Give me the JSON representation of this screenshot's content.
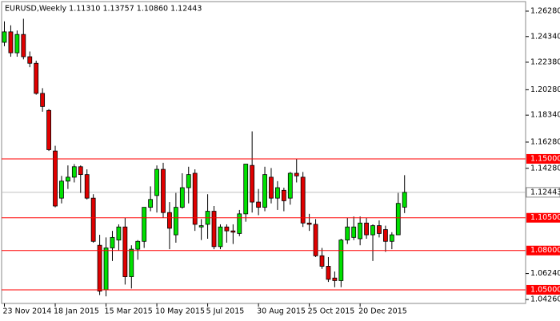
{
  "chart_data": {
    "type": "candlestick",
    "title": "EURUSD,Weekly  1.11310 1.13757 1.10860 1.12443",
    "categories": [
      "23 Nov 2014",
      null,
      null,
      null,
      null,
      null,
      null,
      null,
      "18 Jan 2015",
      null,
      null,
      null,
      null,
      null,
      null,
      null,
      "15 Mar 2015",
      null,
      null,
      null,
      null,
      null,
      null,
      null,
      "10 May 2015",
      null,
      null,
      null,
      null,
      null,
      null,
      null,
      "5 Jul 2015",
      null,
      null,
      null,
      null,
      null,
      null,
      null,
      "30 Aug 2015",
      null,
      null,
      null,
      null,
      null,
      null,
      null,
      "25 Oct 2015",
      null,
      null,
      null,
      null,
      null,
      null,
      null,
      "20 Dec 2015",
      null,
      null,
      null,
      null,
      null,
      null,
      null
    ],
    "open": [
      1.239,
      1.247,
      1.231,
      1.245,
      1.228,
      1.223,
      1.2,
      1.187,
      1.156,
      1.12,
      1.133,
      1.136,
      1.144,
      1.138,
      1.12,
      1.084,
      1.05,
      1.082,
      1.088,
      1.098,
      1.06,
      1.081,
      1.087,
      1.113,
      1.122,
      1.142,
      1.109,
      1.092,
      1.113,
      1.128,
      1.139,
      1.098,
      1.1,
      1.11,
      1.083,
      1.098,
      1.095,
      1.093,
      1.108,
      1.145,
      1.117,
      1.113,
      1.136,
      1.12,
      1.126,
      1.12,
      1.139,
      1.136,
      1.101,
      1.1,
      1.076,
      1.068,
      1.059,
      1.057,
      1.088,
      1.09,
      1.089,
      1.101,
      1.092,
      1.099,
      1.096,
      1.087,
      1.092,
      1.1131
    ],
    "high": [
      1.255,
      1.252,
      1.248,
      1.257,
      1.232,
      1.225,
      1.204,
      1.188,
      1.16,
      1.137,
      1.145,
      1.146,
      1.145,
      1.142,
      1.123,
      1.092,
      1.09,
      1.095,
      1.1,
      1.105,
      1.084,
      1.088,
      1.113,
      1.129,
      1.145,
      1.147,
      1.117,
      1.124,
      1.139,
      1.144,
      1.142,
      1.104,
      1.123,
      1.114,
      1.1,
      1.1,
      1.1,
      1.111,
      1.146,
      1.171,
      1.127,
      1.144,
      1.143,
      1.133,
      1.128,
      1.14,
      1.15,
      1.14,
      1.108,
      1.104,
      1.082,
      1.075,
      1.064,
      1.089,
      1.105,
      1.106,
      1.106,
      1.105,
      1.1,
      1.103,
      1.099,
      1.094,
      1.124,
      1.13757
    ],
    "low": [
      1.236,
      1.228,
      1.228,
      1.226,
      1.22,
      1.199,
      1.186,
      1.156,
      1.113,
      1.116,
      1.127,
      1.132,
      1.124,
      1.119,
      1.086,
      1.046,
      1.045,
      1.072,
      1.08,
      1.054,
      1.051,
      1.073,
      1.082,
      1.11,
      1.109,
      1.105,
      1.081,
      1.086,
      1.112,
      1.116,
      1.095,
      1.088,
      1.089,
      1.081,
      1.081,
      1.086,
      1.085,
      1.091,
      1.102,
      1.109,
      1.107,
      1.11,
      1.116,
      1.111,
      1.11,
      1.115,
      1.132,
      1.098,
      1.095,
      1.075,
      1.066,
      1.056,
      1.052,
      1.052,
      1.085,
      1.088,
      1.084,
      1.089,
      1.072,
      1.09,
      1.079,
      1.081,
      1.092,
      1.1086
    ],
    "close": [
      1.247,
      1.231,
      1.245,
      1.228,
      1.223,
      1.2,
      1.19,
      1.157,
      1.114,
      1.133,
      1.136,
      1.144,
      1.138,
      1.12,
      1.087,
      1.049,
      1.082,
      1.09,
      1.098,
      1.06,
      1.081,
      1.087,
      1.113,
      1.119,
      1.142,
      1.109,
      1.097,
      1.113,
      1.128,
      1.138,
      1.1,
      1.099,
      1.11,
      1.083,
      1.098,
      1.095,
      1.094,
      1.108,
      1.146,
      1.117,
      1.113,
      1.138,
      1.12,
      1.128,
      1.118,
      1.139,
      1.137,
      1.101,
      1.1,
      1.076,
      1.068,
      1.058,
      1.057,
      1.088,
      1.098,
      1.098,
      1.101,
      1.092,
      1.099,
      1.093,
      1.087,
      1.092,
      1.116,
      1.12443
    ],
    "up_color": "#00e000",
    "down_color": "#e00000",
    "ylim": [
      1.0396,
      1.2701
    ],
    "yticks": [
      {
        "value": 1.2628,
        "label": "1.26280"
      },
      {
        "value": 1.2434,
        "label": "1.24340"
      },
      {
        "value": 1.2238,
        "label": "1.22380"
      },
      {
        "value": 1.2028,
        "label": "1.20280"
      },
      {
        "value": 1.1834,
        "label": "1.18340"
      },
      {
        "value": 1.1628,
        "label": "1.16280"
      },
      {
        "value": 1.1428,
        "label": "1.14280"
      },
      {
        "value": 1.0624,
        "label": "1.06240"
      },
      {
        "value": 1.0426,
        "label": "1.04260"
      }
    ],
    "levels": [
      {
        "value": 1.15,
        "label": "1.15000"
      },
      {
        "value": 1.105,
        "label": "1.10500"
      },
      {
        "value": 1.08,
        "label": "1.08000"
      },
      {
        "value": 1.05,
        "label": "1.05000"
      }
    ],
    "level_color": "#ff0000",
    "current_price": {
      "value": 1.12443,
      "label": "1.12443"
    }
  }
}
